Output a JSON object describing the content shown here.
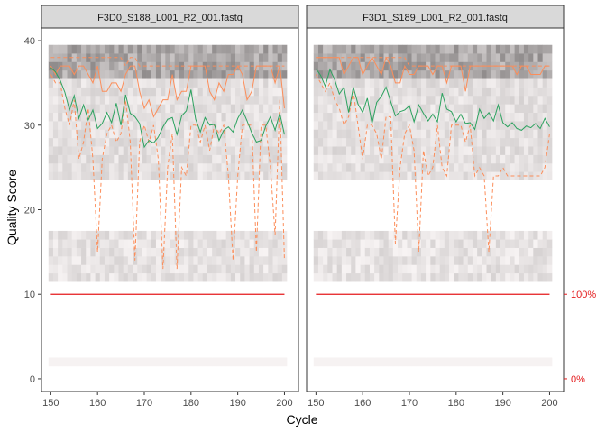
{
  "chart_data": {
    "type": "line",
    "xlabel": "Cycle",
    "ylabel": "Quality Score",
    "xlim": [
      148,
      203
    ],
    "ylim": [
      -1.5,
      41.5
    ],
    "x_ticks": [
      150,
      160,
      170,
      180,
      190,
      200
    ],
    "y_ticks": [
      0,
      10,
      20,
      30,
      40
    ],
    "secondary_axis": {
      "labels": [
        "100%",
        "0%"
      ],
      "values": [
        10,
        0
      ],
      "color": "#e41a1c"
    },
    "reads_line": {
      "y": 10,
      "color": "#e41a1c"
    },
    "series_colors": {
      "mean": "#2ca25f",
      "median": "#fc8d59",
      "quartiles": "#fc8d59"
    },
    "panels": [
      {
        "name": "F3D0_S188_L001_R2_001.fastq",
        "mean": [
          36.8,
          36.3,
          35.3,
          33.9,
          31.8,
          33.5,
          30.8,
          32.4,
          30.6,
          31.8,
          29.6,
          30.2,
          31.5,
          30.3,
          32.6,
          30.0,
          33.6,
          31.4,
          31.0,
          30.2,
          27.4,
          28.2,
          27.9,
          28.6,
          29.8,
          30.7,
          30.9,
          28.9,
          31.1,
          31.7,
          34.2,
          30.7,
          29.2,
          30.9,
          30.0,
          30.1,
          28.2,
          29.4,
          29.8,
          29.2,
          30.8,
          31.8,
          30.5,
          29.1,
          28.0,
          28.2,
          29.9,
          31.0,
          29.4,
          31.4,
          28.9
        ],
        "median": [
          37.0,
          36.0,
          37.0,
          37.0,
          37.0,
          36.0,
          37.0,
          37.0,
          36.0,
          35.0,
          37.0,
          34.0,
          34.0,
          35.0,
          35.0,
          34.0,
          36.0,
          37.0,
          37.0,
          34.0,
          32.0,
          33.0,
          31.0,
          32.0,
          33.0,
          33.0,
          36.0,
          33.0,
          34.0,
          34.0,
          37.0,
          37.0,
          37.0,
          37.0,
          34.0,
          33.0,
          35.0,
          34.0,
          36.0,
          36.0,
          37.0,
          36.0,
          33.0,
          34.0,
          37.0,
          37.0,
          37.0,
          37.0,
          35.0,
          37.0,
          32.0
        ],
        "q25": [
          36.0,
          35.0,
          35.0,
          32.0,
          30.0,
          33.0,
          26.0,
          28.0,
          32.0,
          26.0,
          15.0,
          26.0,
          29.0,
          30.0,
          28.0,
          29.0,
          33.0,
          28.0,
          14.0,
          28.0,
          30.0,
          28.0,
          30.0,
          26.0,
          13.0,
          25.0,
          29.0,
          13.0,
          25.0,
          24.0,
          30.0,
          30.0,
          28.0,
          30.0,
          27.0,
          30.0,
          29.0,
          30.0,
          24.0,
          14.0,
          24.0,
          30.0,
          30.0,
          30.0,
          15.0,
          30.0,
          30.0,
          25.0,
          17.0,
          33.0,
          14.0
        ],
        "q75": [
          38.0,
          38.0,
          38.0,
          38.0,
          38.0,
          38.0,
          38.0,
          38.0,
          38.0,
          38.0,
          38.0,
          38.0,
          38.0,
          38.0,
          38.0,
          38.0,
          37.0,
          38.0,
          38.0,
          37.0,
          37.0,
          37.0,
          37.0,
          37.0,
          37.0,
          37.0,
          37.0,
          37.0,
          37.0,
          37.0,
          37.0,
          37.0,
          37.0,
          37.0,
          37.0,
          37.0,
          37.0,
          37.0,
          37.0,
          37.0,
          37.0,
          37.0,
          37.0,
          37.0,
          37.0,
          37.0,
          37.0,
          37.0,
          37.0,
          37.0,
          37.0
        ]
      },
      {
        "name": "F3D1_S189_L001_R2_001.fastq",
        "mean": [
          36.7,
          35.9,
          34.6,
          36.6,
          35.4,
          33.7,
          34.5,
          31.5,
          34.5,
          32.5,
          31.5,
          33.2,
          30.2,
          32.7,
          33.4,
          34.5,
          32.8,
          31.1,
          31.6,
          31.8,
          32.3,
          30.4,
          32.4,
          31.4,
          30.5,
          31.3,
          30.4,
          33.8,
          31.9,
          31.6,
          30.4,
          31.3,
          30.2,
          30.3,
          29.5,
          31.9,
          30.8,
          31.5,
          30.5,
          32.4,
          30.3,
          29.8,
          30.3,
          29.6,
          29.4,
          29.9,
          29.7,
          30.2,
          29.6,
          30.8,
          29.8
        ],
        "median": [
          38.0,
          38.0,
          38.0,
          38.0,
          38.0,
          38.0,
          36.0,
          37.0,
          38.0,
          38.0,
          36.0,
          37.0,
          38.0,
          37.0,
          36.0,
          38.0,
          37.0,
          35.0,
          35.0,
          37.0,
          36.0,
          36.0,
          37.0,
          37.0,
          37.0,
          36.0,
          37.0,
          37.0,
          35.0,
          37.0,
          37.0,
          37.0,
          34.0,
          37.0,
          37.0,
          37.0,
          37.0,
          37.0,
          37.0,
          37.0,
          37.0,
          37.0,
          37.0,
          36.0,
          37.0,
          37.0,
          36.0,
          36.0,
          36.0,
          37.0,
          37.0
        ],
        "q25": [
          36.0,
          35.0,
          34.0,
          35.0,
          33.0,
          32.0,
          30.0,
          31.0,
          34.0,
          30.0,
          26.0,
          30.0,
          30.0,
          29.0,
          26.0,
          31.0,
          31.0,
          16.0,
          25.0,
          29.0,
          30.0,
          27.0,
          15.0,
          27.0,
          24.0,
          25.0,
          30.0,
          25.0,
          24.0,
          30.0,
          30.0,
          30.0,
          28.0,
          30.0,
          24.0,
          25.0,
          24.0,
          15.0,
          24.0,
          24.0,
          25.0,
          24.0,
          24.0,
          24.0,
          24.0,
          24.0,
          24.0,
          24.0,
          24.0,
          25.0,
          29.0
        ],
        "q75": [
          38.0,
          38.0,
          38.0,
          38.0,
          38.0,
          38.0,
          38.0,
          38.0,
          38.0,
          38.0,
          38.0,
          38.0,
          38.0,
          38.0,
          38.0,
          38.0,
          38.0,
          38.0,
          38.0,
          38.0,
          37.0,
          37.0,
          37.0,
          37.0,
          37.0,
          37.0,
          37.0,
          37.0,
          37.0,
          37.0,
          37.0,
          37.0,
          37.0,
          37.0,
          37.0,
          37.0,
          37.0,
          37.0,
          37.0,
          37.0,
          37.0,
          37.0,
          37.0,
          37.0,
          37.0,
          37.0,
          37.0,
          37.0,
          37.0,
          37.0,
          37.0
        ]
      }
    ]
  }
}
